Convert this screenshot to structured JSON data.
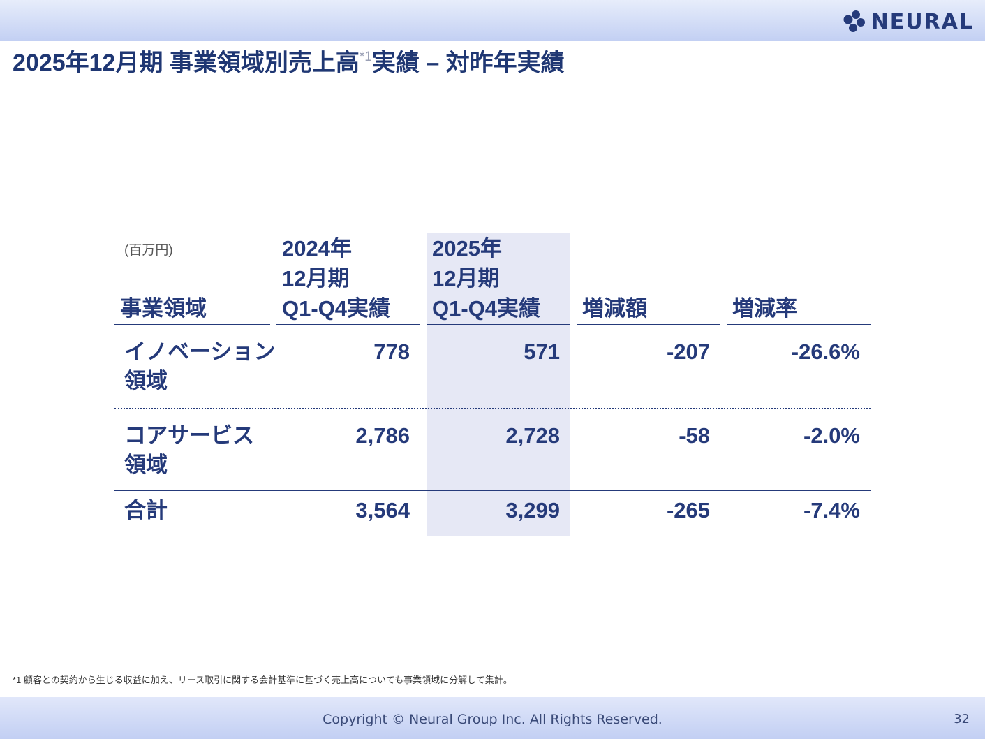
{
  "header": {
    "logo_text": "NEURAL",
    "title_main": "2025年12月期 事業領域別売上高",
    "title_sup": "*1",
    "title_rest": "実績 – 対昨年実績"
  },
  "table": {
    "unit": "(百万円)",
    "col_headers": {
      "area": "事業領域",
      "prev_line1": "2024年",
      "prev_line2": "12月期",
      "prev_line3": "Q1-Q4実績",
      "curr_line1": "2025年",
      "curr_line2": "12月期",
      "curr_line3": "Q1-Q4実績",
      "diff": "増減額",
      "rate": "増減率"
    },
    "rows": [
      {
        "label_line1": "イノベーション",
        "label_line2": "領域",
        "prev": "778",
        "curr": "571",
        "diff": "-207",
        "rate": "-26.6%"
      },
      {
        "label_line1": "コアサービス",
        "label_line2": "領域",
        "prev": "2,786",
        "curr": "2,728",
        "diff": "-58",
        "rate": "-2.0%"
      }
    ],
    "total": {
      "label": "合計",
      "prev": "3,564",
      "curr": "3,299",
      "diff": "-265",
      "rate": "-7.4%"
    }
  },
  "footnote": "*1 顧客との契約から生じる収益に加え、リース取引に関する会計基準に基づく売上高についても事業領域に分解して集計。",
  "footer": {
    "copyright": "Copyright © Neural Group Inc. All Rights Reserved.",
    "page_number": "32"
  },
  "colors": {
    "navy": "#253a7a",
    "highlight": "#e6e8f5",
    "band": "#c3d0f3"
  }
}
